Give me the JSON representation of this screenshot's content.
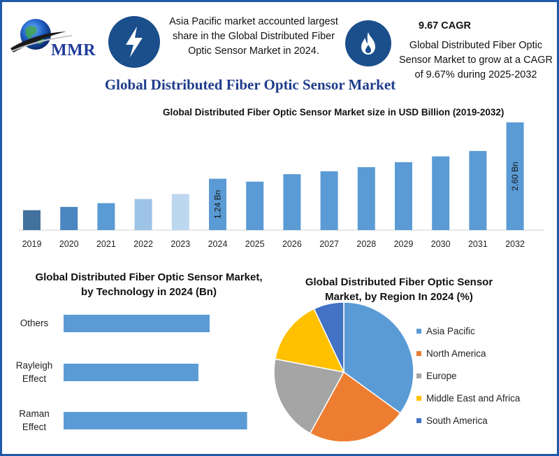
{
  "header": {
    "brand": "MMR",
    "fact_left": "Asia Pacific market accounted largest share in the Global Distributed Fiber Optic Sensor Market in 2024.",
    "cagr_title": "9.67 CAGR",
    "fact_right": "Global Distributed Fiber Optic Sensor Market to grow at a CAGR of 9.67% during 2025-2032",
    "main_title": "Global Distributed Fiber Optic Sensor Market",
    "icons": [
      "globe-logo-icon",
      "lightning-bolt-icon",
      "flame-icon"
    ]
  },
  "colors": {
    "frame": "#1e5aa8",
    "badge": "#1b4f8c",
    "title_blue": "#1f3c8a",
    "bar_blue": "#5b9bd5"
  },
  "chart_data": [
    {
      "type": "bar",
      "title": "Global Distributed Fiber Optic Sensor Market size in USD Billion (2019-2032)",
      "categories": [
        "2019",
        "2020",
        "2021",
        "2022",
        "2023",
        "2024",
        "2025",
        "2026",
        "2027",
        "2028",
        "2029",
        "2030",
        "2031",
        "2032"
      ],
      "values": [
        0.48,
        0.56,
        0.65,
        0.75,
        0.87,
        1.24,
        1.17,
        1.35,
        1.42,
        1.52,
        1.64,
        1.78,
        1.91,
        2.6
      ],
      "bar_colors": [
        "#41719c",
        "#4a86c0",
        "#5b9bd5",
        "#9dc3e6",
        "#bdd7ee",
        "#5b9bd5",
        "#5b9bd5",
        "#5b9bd5",
        "#5b9bd5",
        "#5b9bd5",
        "#5b9bd5",
        "#5b9bd5",
        "#5b9bd5",
        "#5b9bd5"
      ],
      "data_labels": [
        {
          "category": "2024",
          "text": "1.24 Bn"
        },
        {
          "category": "2032",
          "text": "2.60 Bn"
        }
      ],
      "xlabel": "",
      "ylabel": "",
      "grid": false
    },
    {
      "type": "bar",
      "orientation": "horizontal",
      "title": "Global Distributed Fiber Optic Sensor Market, by Technology in 2024 (Bn)",
      "categories": [
        "Others",
        "Rayleigh Effect",
        "Raman Effect"
      ],
      "category_lines": [
        [
          "Others"
        ],
        [
          "Rayleigh",
          "Effect"
        ],
        [
          "Raman",
          "Effect"
        ]
      ],
      "values": [
        0.39,
        0.36,
        0.49
      ],
      "color": "#5b9bd5",
      "xlim": [
        0,
        0.5
      ],
      "grid": false
    },
    {
      "type": "pie",
      "title": "Global Distributed Fiber Optic Sensor Market, by Region In 2024 (%)",
      "labels": [
        "Asia Pacific",
        "North America",
        "Europe",
        "Middle East and Africa",
        "South America"
      ],
      "values": [
        35,
        23,
        20,
        15,
        7
      ],
      "colors": [
        "#5b9bd5",
        "#ed7d31",
        "#a5a5a5",
        "#ffc000",
        "#4472c4"
      ],
      "legend": "right"
    }
  ]
}
